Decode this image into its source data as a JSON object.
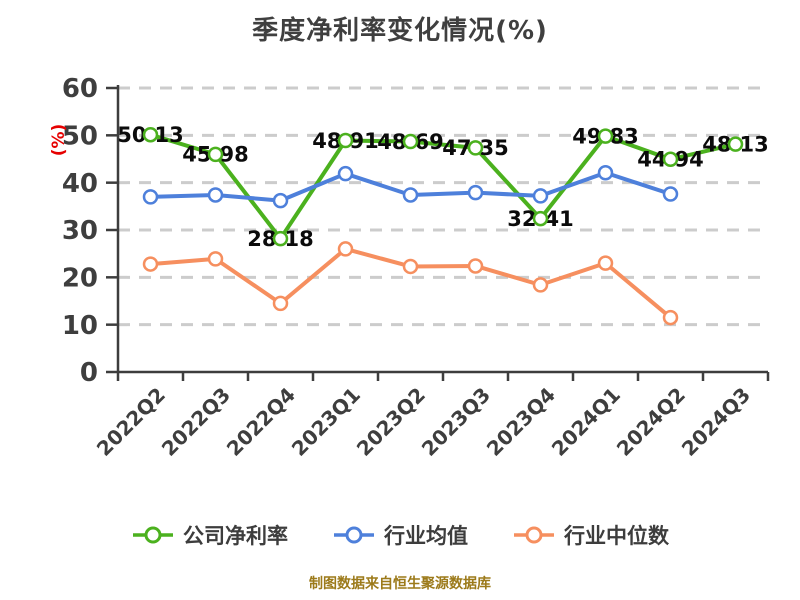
{
  "chart_data": {
    "type": "line",
    "title": "季度净利率变化情况(%)",
    "ylabel": "(%)",
    "ylim": [
      0,
      60
    ],
    "yticks": [
      0,
      10,
      20,
      30,
      40,
      50,
      60
    ],
    "categories": [
      "2022Q2",
      "2022Q3",
      "2022Q4",
      "2023Q1",
      "2023Q2",
      "2023Q3",
      "2023Q4",
      "2024Q1",
      "2024Q2",
      "2024Q3"
    ],
    "series": [
      {
        "name": "公司净利率",
        "color": "#4bb11e",
        "show_labels": true,
        "values": [
          50.13,
          45.98,
          28.18,
          48.91,
          48.69,
          47.35,
          32.41,
          49.83,
          44.94,
          48.13
        ]
      },
      {
        "name": "行业均值",
        "color": "#4e80db",
        "show_labels": false,
        "values": [
          37.0,
          37.4,
          36.2,
          41.9,
          37.4,
          37.9,
          37.2,
          42.1,
          37.6
        ]
      },
      {
        "name": "行业中位数",
        "color": "#f68f5f",
        "show_labels": false,
        "values": [
          22.8,
          23.9,
          14.5,
          26.0,
          22.3,
          22.4,
          18.4,
          23.0,
          11.5
        ]
      }
    ],
    "grid": {
      "style": "dashed",
      "color": "#cccccc"
    },
    "legend_position": "bottom"
  },
  "footer": {
    "source_note": "制图数据来自恒生聚源数据库"
  }
}
